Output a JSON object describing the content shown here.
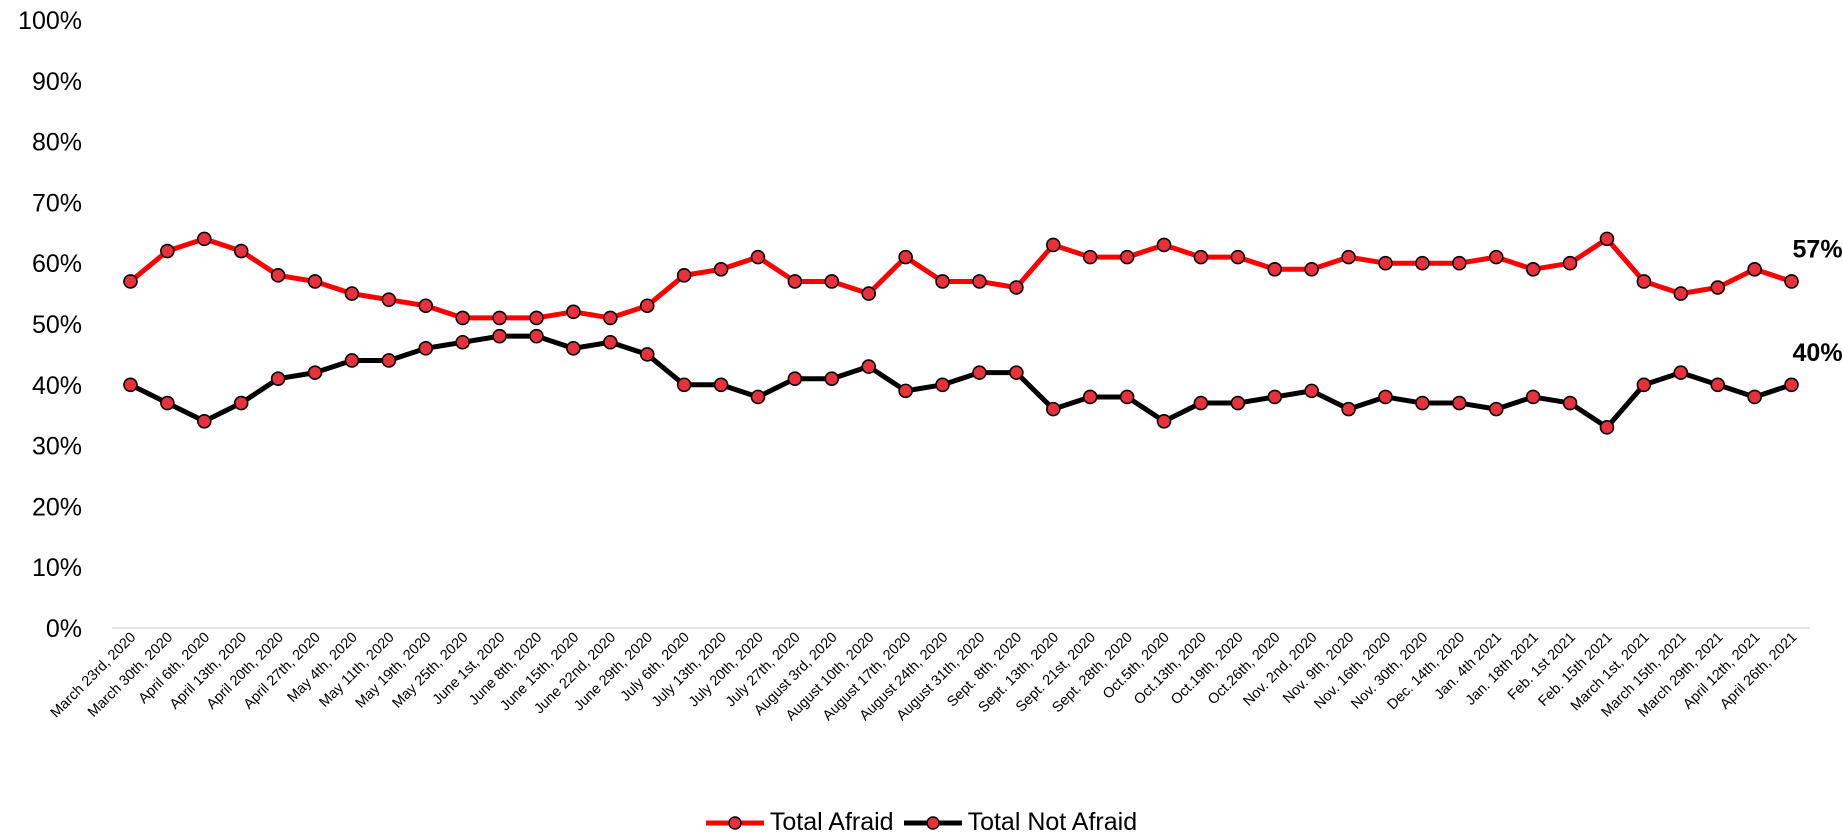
{
  "chart_data": {
    "type": "line",
    "title": "",
    "xlabel": "",
    "ylabel": "",
    "ylim": [
      0,
      100
    ],
    "y_ticks": [
      "0%",
      "10%",
      "20%",
      "30%",
      "40%",
      "50%",
      "60%",
      "70%",
      "80%",
      "90%",
      "100%"
    ],
    "grid": false,
    "legend_position": "bottom",
    "categories": [
      "March 23rd, 2020",
      "March 30th, 2020",
      "April 6th, 2020",
      "April 13th, 2020",
      "April 20th, 2020",
      "April 27th, 2020",
      "May 4th, 2020",
      "May 11th, 2020",
      "May 19th, 2020",
      "May 25th, 2020",
      "June 1st, 2020",
      "June 8th, 2020",
      "June 15th, 2020",
      "June 22nd, 2020",
      "June 29th, 2020",
      "July 6th, 2020",
      "July 13th, 2020",
      "July 20th, 2020",
      "July 27th, 2020",
      "August 3rd, 2020",
      "August 10th, 2020",
      "August 17th, 2020",
      "August 24th, 2020",
      "August 31th, 2020",
      "Sept. 8th, 2020",
      "Sept. 13th, 2020",
      "Sept. 21st, 2020",
      "Sept. 28th, 2020",
      "Oct.5th, 2020",
      "Oct.13th, 2020",
      "Oct.19th, 2020",
      "Oct.26th, 2020",
      "Nov. 2nd, 2020",
      "Nov. 9th, 2020",
      "Nov. 16th, 2020",
      "Nov. 30th, 2020",
      "Dec. 14th, 2020",
      "Jan. 4th 2021",
      "Jan. 18th 2021",
      "Feb. 1st 2021",
      "Feb. 15th 2021",
      "March 1st, 2021",
      "March 15th, 2021",
      "March 29th, 2021",
      "April 12th, 2021",
      "April 26th, 2021"
    ],
    "series": [
      {
        "name": "Total Afraid",
        "color": "#ff0000",
        "values": [
          57,
          62,
          64,
          62,
          58,
          57,
          55,
          54,
          53,
          51,
          51,
          51,
          52,
          51,
          53,
          58,
          59,
          61,
          57,
          57,
          55,
          61,
          57,
          57,
          56,
          63,
          61,
          61,
          63,
          61,
          61,
          59,
          59,
          61,
          60,
          60,
          60,
          61,
          59,
          60,
          64,
          57,
          55,
          56,
          59,
          57
        ],
        "end_label": "57%"
      },
      {
        "name": "Total Not Afraid",
        "color": "#000000",
        "values": [
          40,
          37,
          34,
          37,
          41,
          42,
          44,
          44,
          46,
          47,
          48,
          48,
          46,
          47,
          45,
          40,
          40,
          38,
          41,
          41,
          43,
          39,
          40,
          42,
          42,
          36,
          38,
          38,
          34,
          37,
          37,
          38,
          39,
          36,
          38,
          37,
          37,
          36,
          38,
          37,
          33,
          40,
          42,
          40,
          38,
          40
        ],
        "end_label": "40%"
      }
    ],
    "marker_fill": "#e8313a"
  }
}
